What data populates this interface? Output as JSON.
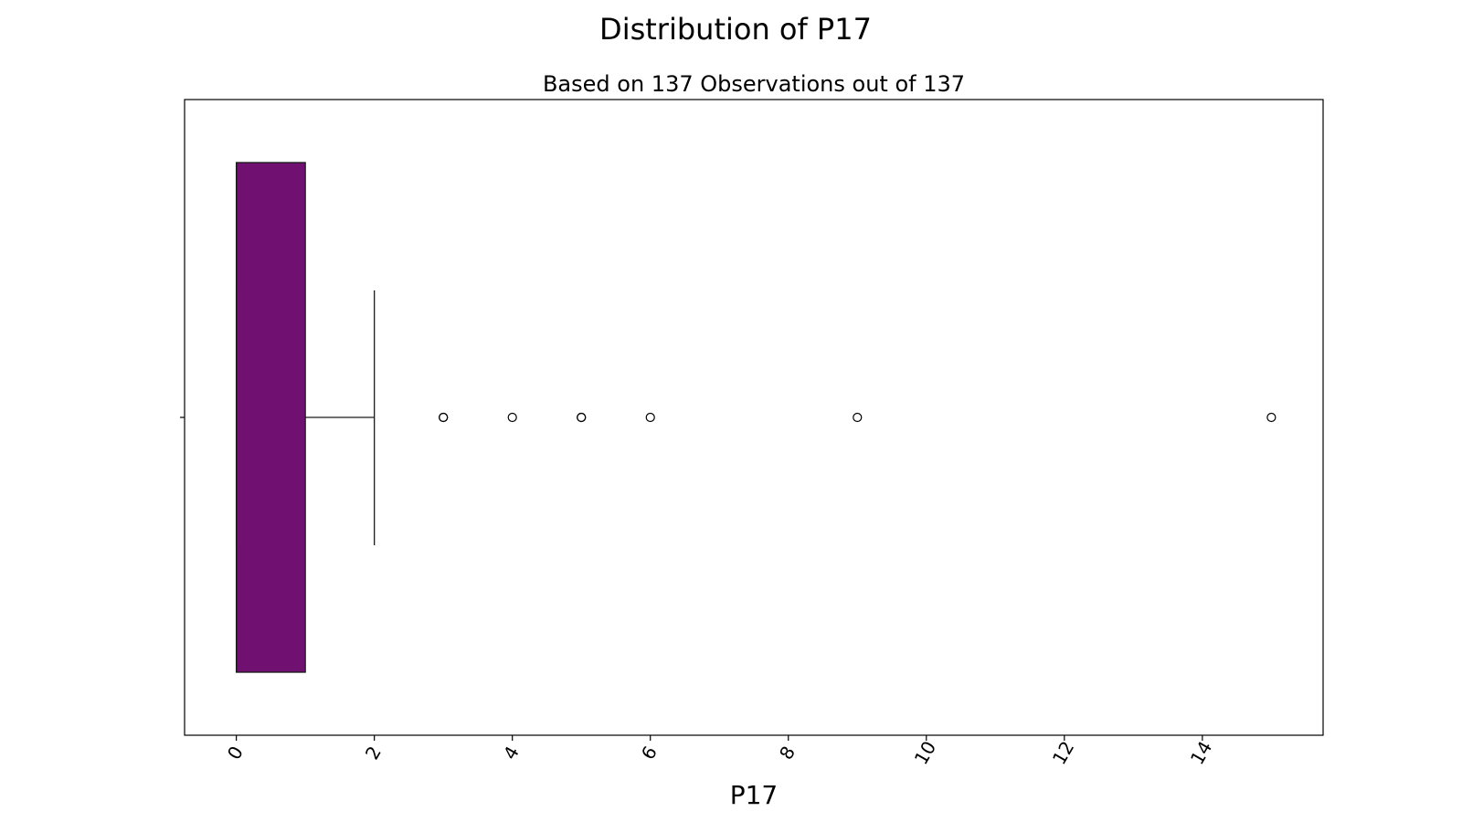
{
  "chart_data": {
    "type": "box",
    "title": "Distribution of P17",
    "subtitle": "Based on 137 Observations out of 137",
    "xlabel": "P17",
    "ylabel": "",
    "orientation": "horizontal",
    "xlim": [
      -0.75,
      15.75
    ],
    "xticks": [
      0,
      2,
      4,
      6,
      8,
      10,
      12,
      14
    ],
    "xtick_labels": [
      "0",
      "2",
      "4",
      "6",
      "8",
      "10",
      "12",
      "14"
    ],
    "tick_label_rotation": -60,
    "grid": false,
    "box": {
      "min_whisker": 0,
      "q1": 0,
      "median": 0,
      "q3": 1,
      "max_whisker": 2,
      "fill_color": "#701070",
      "edge_color": "#1a1a1a"
    },
    "outliers": [
      3,
      3,
      4,
      5,
      5,
      6,
      9,
      15
    ]
  }
}
